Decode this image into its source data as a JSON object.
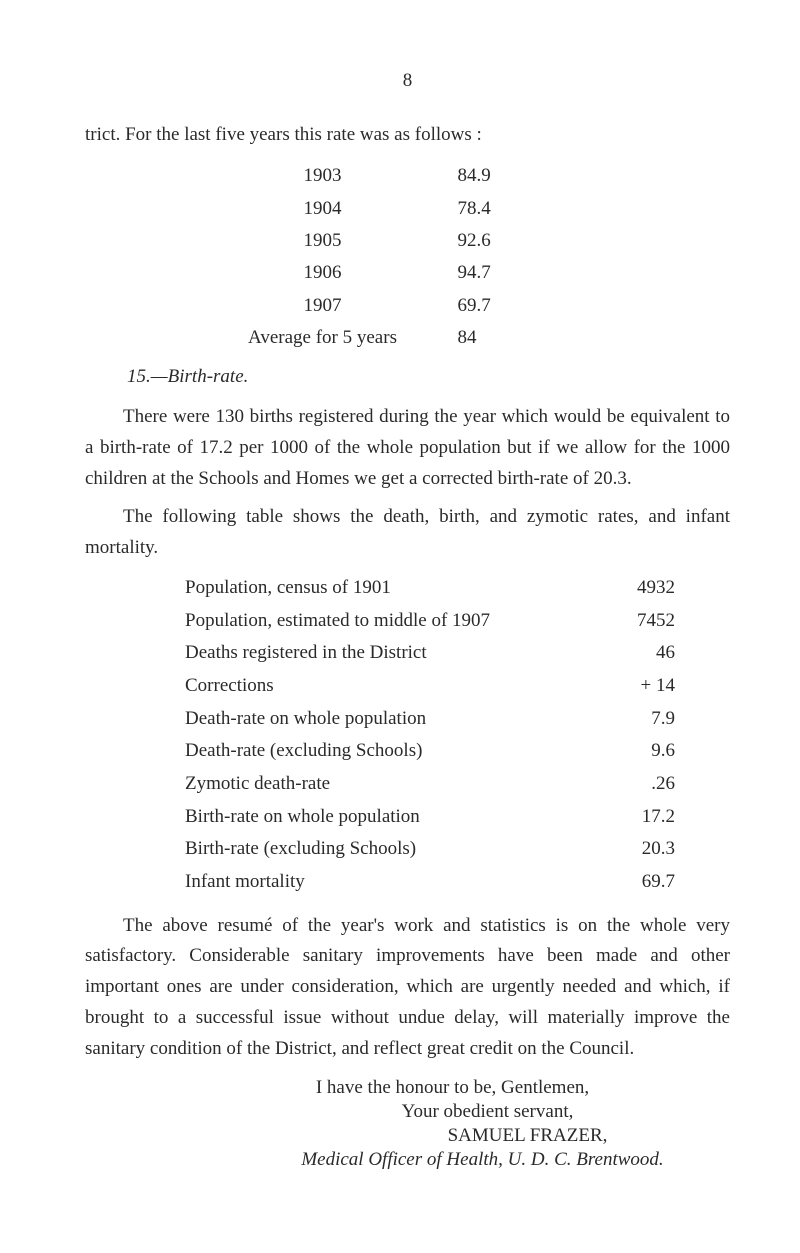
{
  "page_number": "8",
  "intro_line": "trict.   For the last five years this rate was as follows :",
  "rate_table": [
    {
      "year": "1903",
      "value": "84.9"
    },
    {
      "year": "1904",
      "value": "78.4"
    },
    {
      "year": "1905",
      "value": "92.6"
    },
    {
      "year": "1906",
      "value": "94.7"
    },
    {
      "year": "1907",
      "value": "69.7"
    }
  ],
  "avg_label": "Average for 5 years",
  "avg_value": "84",
  "section_heading": "15.—Birth-rate.",
  "para_1": "There were 130 births registered during the year which would be equivalent to a birth-rate of 17.2 per 1000 of the whole population but if we allow for the 1000 children at the Schools and Homes we get a corrected birth-rate of 20.3.",
  "para_2": "The following table shows the death, birth, and zymotic rates, and infant mortality.",
  "stats_table": [
    {
      "label": "Population, census of 1901",
      "value": "4932"
    },
    {
      "label": "Population, estimated to middle of 1907",
      "value": "7452"
    },
    {
      "label": "Deaths registered in the District",
      "value": "46"
    },
    {
      "label": "Corrections",
      "value": "+ 14"
    },
    {
      "label": "Death-rate on whole population",
      "value": "7.9"
    },
    {
      "label": "Death-rate (excluding Schools)",
      "value": "9.6"
    },
    {
      "label": "Zymotic death-rate",
      "value": ".26"
    },
    {
      "label": "Birth-rate on whole population",
      "value": "17.2"
    },
    {
      "label": "Birth-rate (excluding Schools)",
      "value": "20.3"
    },
    {
      "label": "Infant mortality",
      "value": "69.7"
    }
  ],
  "para_3": "The above resumé of the year's work and statistics is on the whole very satisfactory. Considerable sanitary improvements have been made and other important ones are under consideration, which are urgently needed and which, if brought to a successful issue without undue delay, will materially improve the sanitary condition of the District, and reflect great credit on the Council.",
  "closing_honour": "I have the honour to be, Gentlemen,",
  "closing_servant": "Your obedient servant,",
  "closing_name": "SAMUEL FRAZER,",
  "closing_title": "Medical Officer of Health, U. D. C. Brentwood."
}
